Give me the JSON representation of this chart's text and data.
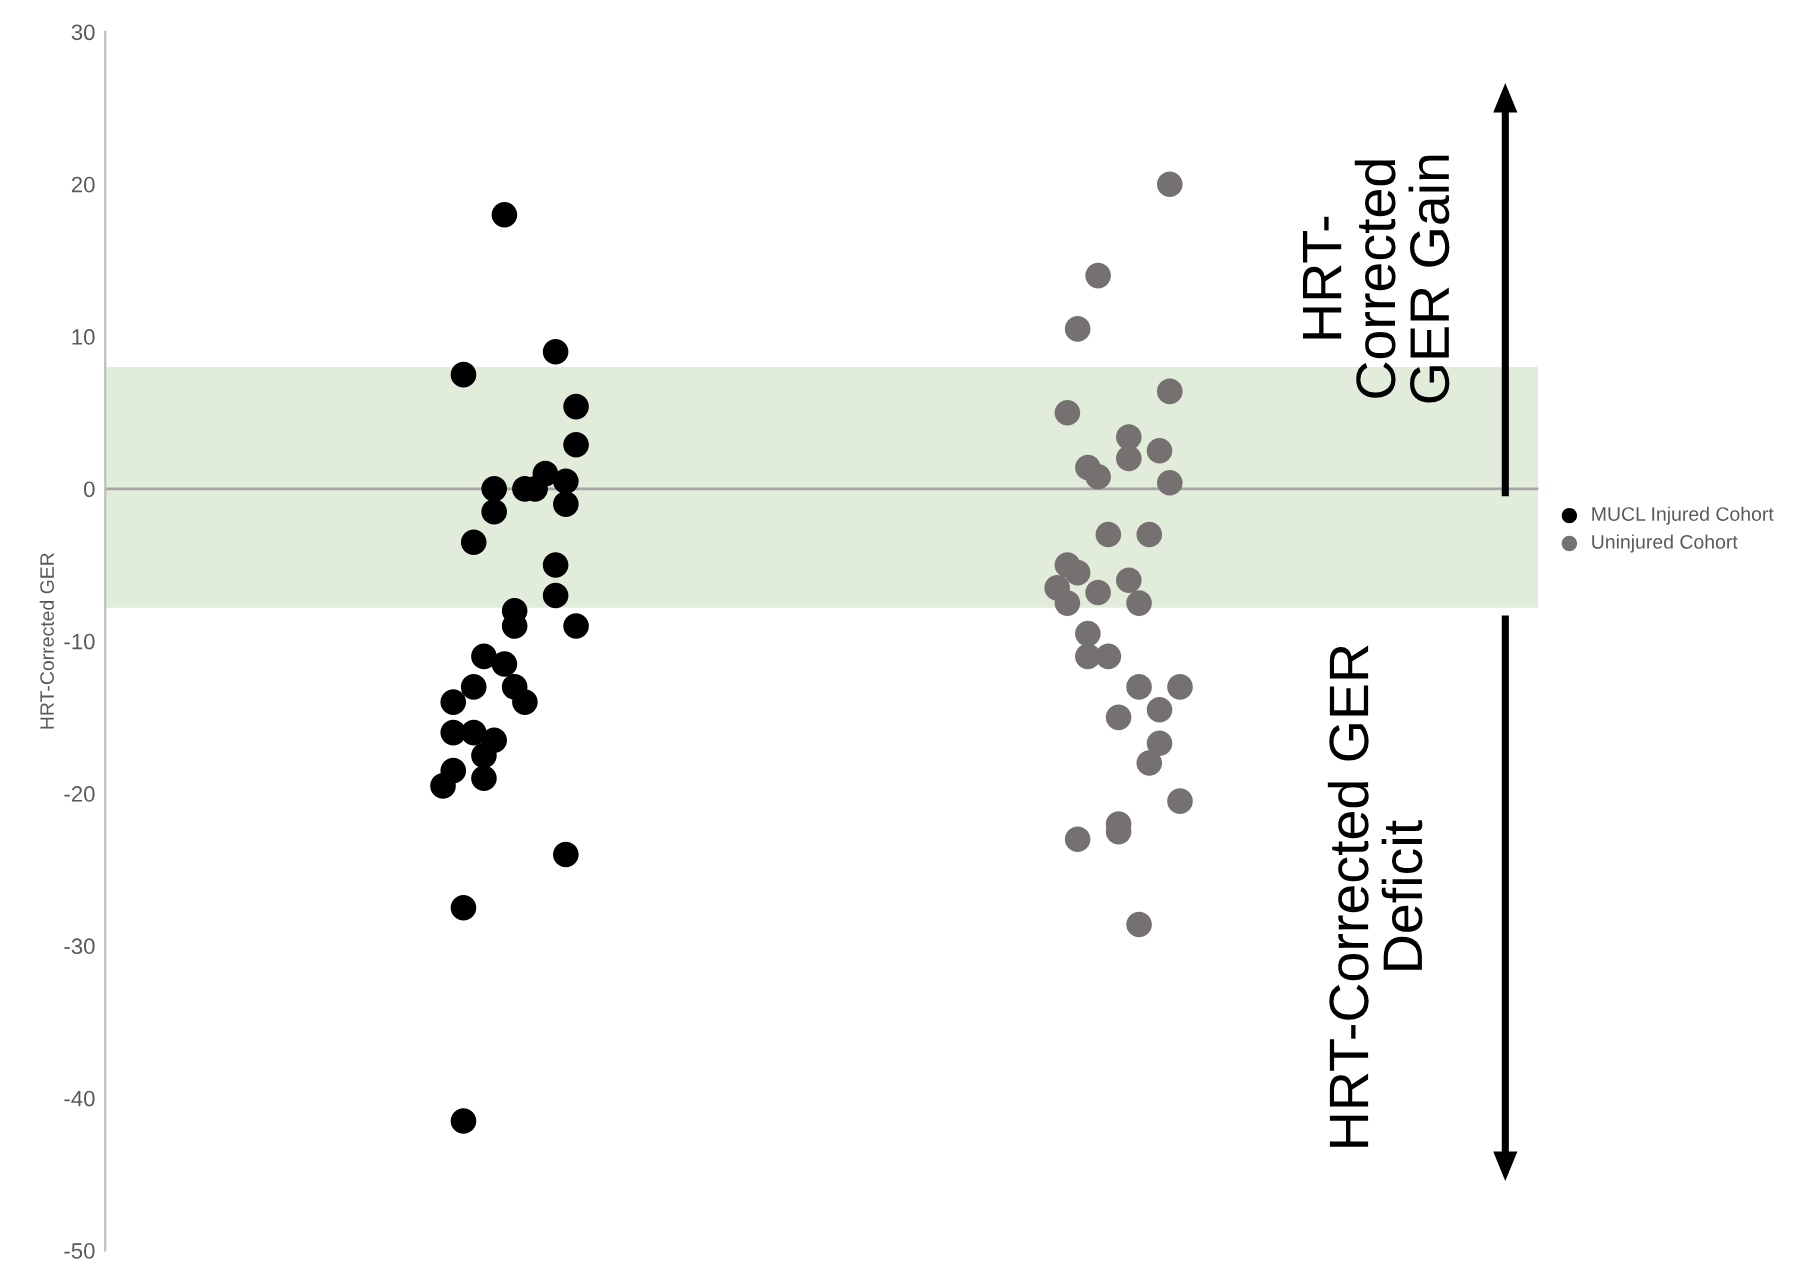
{
  "chart_data": {
    "type": "scatter",
    "ylabel": "HRT-Corrected GER",
    "categories": [
      null,
      null,
      null,
      null,
      null,
      null,
      null,
      null,
      null,
      null,
      null,
      null,
      null,
      null,
      null,
      null,
      null,
      null,
      null,
      null,
      null,
      null,
      null,
      null,
      null,
      null,
      null,
      null,
      null,
      null,
      null,
      null,
      null,
      null,
      null,
      null,
      null,
      null,
      null,
      null,
      null,
      null,
      null,
      null,
      null,
      null,
      null,
      null,
      null,
      null,
      null,
      null,
      null,
      null,
      null,
      null,
      null,
      null,
      null,
      null,
      null,
      null,
      null,
      null,
      null,
      null,
      null,
      null,
      null,
      null,
      null,
      null,
      null,
      null,
      null,
      null,
      null,
      null,
      null,
      null,
      null,
      null,
      null,
      null,
      null,
      null,
      null,
      null,
      null,
      null,
      null,
      null,
      null,
      null,
      null,
      null,
      null,
      null,
      null,
      null,
      null,
      null,
      null,
      null,
      null,
      null,
      null,
      null,
      null,
      null,
      null,
      null,
      null,
      null,
      null,
      null,
      null,
      null,
      null,
      null,
      null,
      null,
      null,
      null,
      null,
      null,
      null,
      null,
      null,
      null,
      null,
      null,
      null,
      null,
      null,
      null,
      null,
      null,
      null,
      null,
      null
    ],
    "ylim": [
      -50,
      30
    ],
    "yticks": [
      -50,
      -40,
      -30,
      -20,
      -10,
      0,
      10,
      20,
      30
    ],
    "tick_labels": "y",
    "grid": false,
    "legend": "right",
    "marker": "circle",
    "bands": [
      {
        "axis": "y",
        "from": -7.8,
        "to": 8,
        "color": "#e2ecda"
      }
    ],
    "ref_lines": [
      {
        "axis": "y",
        "value": 0,
        "color": "#a6a6a6"
      }
    ],
    "annotations": [
      "HRT-\nCorrected\nGER Gain",
      "HRT-Corrected GER\nDeficit"
    ],
    "series": [
      {
        "name": "MUCL Injured Cohort",
        "color": "#000000",
        "values": [
          null,
          null,
          null,
          null,
          null,
          null,
          null,
          null,
          null,
          null,
          null,
          null,
          null,
          null,
          null,
          null,
          null,
          null,
          null,
          null,
          null,
          null,
          null,
          null,
          null,
          null,
          null,
          null,
          null,
          null,
          null,
          null,
          null,
          -19.5,
          -14,
          7.5,
          -3.5,
          -11,
          0,
          18,
          -8,
          0,
          0,
          1,
          -5,
          0.5,
          5.4,
          null,
          null,
          null,
          null,
          null,
          null,
          null,
          null,
          null,
          null,
          null,
          null,
          null,
          null,
          null,
          null,
          null,
          null,
          null,
          null,
          null,
          null,
          null,
          null,
          null,
          null,
          null,
          null,
          null,
          null,
          null,
          null,
          null,
          null,
          null,
          null,
          null,
          null,
          null,
          null,
          null,
          null,
          null,
          null,
          null,
          null,
          null,
          null,
          null,
          null,
          null,
          null,
          null,
          null,
          null,
          null,
          null,
          null,
          null,
          null,
          null,
          null,
          null,
          null,
          null,
          null,
          null,
          null,
          null,
          null,
          null,
          null,
          null,
          null,
          null,
          null,
          null,
          null,
          null,
          null,
          null,
          null,
          null,
          null,
          null,
          null,
          null,
          null,
          null,
          null,
          null,
          null,
          null,
          null
        ]
      },
      {
        "color": "#000000",
        "values": [
          null,
          null,
          null,
          null,
          null,
          null,
          null,
          null,
          null,
          null,
          null,
          null,
          null,
          null,
          null,
          null,
          null,
          null,
          null,
          null,
          null,
          null,
          null,
          null,
          null,
          null,
          null,
          null,
          null,
          null,
          null,
          null,
          null,
          null,
          -16,
          -27.5,
          -13,
          -17.5,
          -1.5,
          -11.5,
          -9,
          -14,
          null,
          null,
          -7,
          -1,
          2.9,
          null,
          null,
          null,
          null,
          null,
          null,
          null,
          null,
          null,
          null,
          null,
          null,
          null,
          null,
          null,
          null,
          null,
          null,
          null,
          null,
          null,
          null,
          null,
          null,
          null,
          null,
          null,
          null,
          null,
          null,
          null,
          null,
          null,
          null,
          null,
          null,
          null,
          null,
          null,
          null,
          null,
          null,
          null,
          null,
          null,
          null,
          null,
          null,
          null,
          null,
          null,
          null,
          null,
          null,
          null,
          null,
          null,
          null,
          null,
          null,
          null,
          null,
          null,
          null,
          null,
          null,
          null,
          null,
          null,
          null,
          null,
          null,
          null,
          null,
          null,
          null,
          null,
          null,
          null,
          null,
          null,
          null,
          null,
          null,
          null,
          null,
          null,
          null,
          null,
          null,
          null,
          null,
          null,
          null
        ]
      },
      {
        "color": "#000000",
        "values": [
          null,
          null,
          null,
          null,
          null,
          null,
          null,
          null,
          null,
          null,
          null,
          null,
          null,
          null,
          null,
          null,
          null,
          null,
          null,
          null,
          null,
          null,
          null,
          null,
          null,
          null,
          null,
          null,
          null,
          null,
          null,
          null,
          null,
          null,
          -18.5,
          -41.5,
          -16,
          -19,
          -16.5,
          null,
          -13,
          null,
          null,
          null,
          9,
          -24,
          -9,
          null,
          null,
          null,
          null,
          null,
          null,
          null,
          null,
          null,
          null,
          null,
          null,
          null,
          null,
          null,
          null,
          null,
          null,
          null,
          null,
          null,
          null,
          null,
          null,
          null,
          null,
          null,
          null,
          null,
          null,
          null,
          null,
          null,
          null,
          null,
          null,
          null,
          null,
          null,
          null,
          null,
          null,
          null,
          null,
          null,
          null,
          null,
          null,
          null,
          null,
          null,
          null,
          null,
          null,
          null,
          null,
          null,
          null,
          null,
          null,
          null,
          null,
          null,
          null,
          null,
          null,
          null,
          null,
          null,
          null,
          null,
          null,
          null,
          null,
          null,
          null,
          null,
          null,
          null,
          null,
          null,
          null,
          null,
          null,
          null,
          null,
          null,
          null,
          null,
          null,
          null,
          null,
          null,
          null
        ]
      },
      {
        "name": "Uninjured Cohort",
        "color": "#767171",
        "values": [
          null,
          null,
          null,
          null,
          null,
          null,
          null,
          null,
          null,
          null,
          null,
          null,
          null,
          null,
          null,
          null,
          null,
          null,
          null,
          null,
          null,
          null,
          null,
          null,
          null,
          null,
          null,
          null,
          null,
          null,
          null,
          null,
          null,
          null,
          null,
          null,
          null,
          null,
          null,
          null,
          null,
          null,
          null,
          null,
          null,
          null,
          null,
          null,
          null,
          null,
          null,
          null,
          null,
          null,
          null,
          null,
          null,
          null,
          null,
          null,
          null,
          null,
          null,
          null,
          null,
          null,
          null,
          null,
          null,
          null,
          null,
          null,
          null,
          null,
          null,
          null,
          null,
          null,
          null,
          null,
          null,
          null,
          null,
          null,
          null,
          null,
          null,
          null,
          null,
          null,
          null,
          null,
          null,
          -6.5,
          5,
          10.5,
          1.4,
          14,
          -3,
          -15,
          3.4,
          -13,
          -3,
          2.5,
          20,
          -20.5,
          null,
          null,
          null,
          null,
          null,
          null,
          null,
          null,
          null,
          null,
          null,
          null,
          null,
          null,
          null,
          null,
          null,
          null,
          null,
          null,
          null,
          null,
          null,
          null,
          null,
          null,
          null,
          null,
          null,
          null,
          null,
          null,
          null,
          null,
          null
        ]
      },
      {
        "color": "#767171",
        "values": [
          null,
          null,
          null,
          null,
          null,
          null,
          null,
          null,
          null,
          null,
          null,
          null,
          null,
          null,
          null,
          null,
          null,
          null,
          null,
          null,
          null,
          null,
          null,
          null,
          null,
          null,
          null,
          null,
          null,
          null,
          null,
          null,
          null,
          null,
          null,
          null,
          null,
          null,
          null,
          null,
          null,
          null,
          null,
          null,
          null,
          null,
          null,
          null,
          null,
          null,
          null,
          null,
          null,
          null,
          null,
          null,
          null,
          null,
          null,
          null,
          null,
          null,
          null,
          null,
          null,
          null,
          null,
          null,
          null,
          null,
          null,
          null,
          null,
          null,
          null,
          null,
          null,
          null,
          null,
          null,
          null,
          null,
          null,
          null,
          null,
          null,
          null,
          null,
          null,
          null,
          null,
          null,
          null,
          null,
          -5,
          -5.5,
          -9.5,
          0.8,
          -11,
          -22.5,
          2,
          -28.6,
          -18,
          -16.7,
          6.4,
          -13,
          null,
          null,
          null,
          null,
          null,
          null,
          null,
          null,
          null,
          null,
          null,
          null,
          null,
          null,
          null,
          null,
          null,
          null,
          null,
          null,
          null,
          null,
          null,
          null,
          null,
          null,
          null,
          null,
          null,
          null,
          null,
          null,
          null,
          null,
          null
        ]
      },
      {
        "color": "#767171",
        "values": [
          null,
          null,
          null,
          null,
          null,
          null,
          null,
          null,
          null,
          null,
          null,
          null,
          null,
          null,
          null,
          null,
          null,
          null,
          null,
          null,
          null,
          null,
          null,
          null,
          null,
          null,
          null,
          null,
          null,
          null,
          null,
          null,
          null,
          null,
          null,
          null,
          null,
          null,
          null,
          null,
          null,
          null,
          null,
          null,
          null,
          null,
          null,
          null,
          null,
          null,
          null,
          null,
          null,
          null,
          null,
          null,
          null,
          null,
          null,
          null,
          null,
          null,
          null,
          null,
          null,
          null,
          null,
          null,
          null,
          null,
          null,
          null,
          null,
          null,
          null,
          null,
          null,
          null,
          null,
          null,
          null,
          null,
          null,
          null,
          null,
          null,
          null,
          null,
          null,
          null,
          null,
          null,
          null,
          null,
          -7.5,
          -23,
          -11,
          -6.8,
          null,
          -22,
          -6,
          -7.5,
          null,
          -14.5,
          0.4,
          null,
          null,
          null,
          null,
          null,
          null,
          null,
          null,
          null,
          null,
          null,
          null,
          null,
          null,
          null,
          null,
          null,
          null,
          null,
          null,
          null,
          null,
          null,
          null,
          null,
          null,
          null,
          null,
          null,
          null,
          null,
          null,
          null,
          null,
          null,
          null
        ]
      }
    ]
  }
}
